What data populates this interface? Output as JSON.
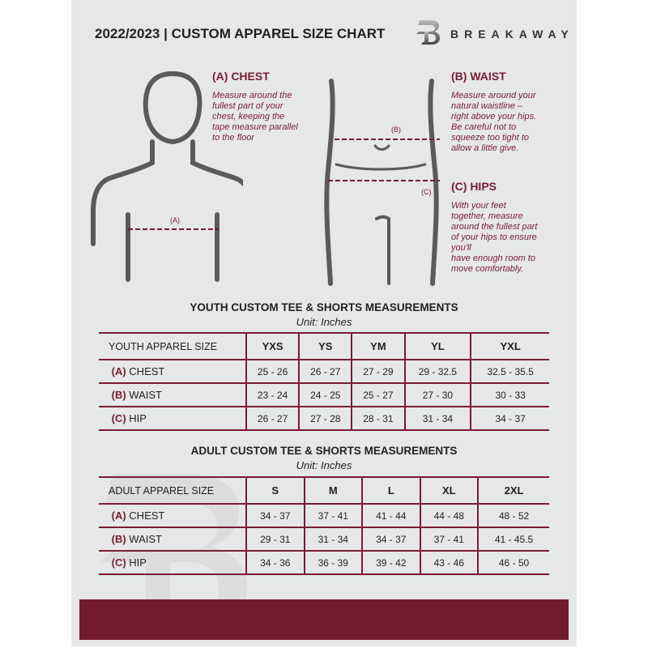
{
  "header": {
    "title": "2022/2023  |  CUSTOM APPAREL SIZE CHART",
    "brand": "BREAKAWAY",
    "logo_letter": "B"
  },
  "chest": {
    "heading": "(A) CHEST",
    "text": [
      "Measure around the",
      "fullest part of your",
      "chest, keeping the",
      "tape measure parallel",
      "to the floor"
    ],
    "marker": "(A)"
  },
  "waist": {
    "heading": "(B) WAIST",
    "text": [
      "Measure around your",
      "natural waistline –",
      "right above your hips.",
      "Be careful not to",
      "squeeze too tight to",
      "allow a little give."
    ],
    "marker": "(B)"
  },
  "hips": {
    "heading": "(C) HIPS",
    "text": [
      "With your feet",
      "together, measure",
      "around the fullest part",
      "of your hips to ensure",
      "you'll",
      "have enough room to",
      "move comfortably."
    ],
    "marker": "(C)"
  },
  "youth": {
    "title": "YOUTH CUSTOM TEE & SHORTS MEASUREMENTS",
    "unit": "Unit: Inches",
    "header": [
      "YOUTH APPAREL SIZE",
      "YXS",
      "YS",
      "YM",
      "YL",
      "YXL"
    ],
    "rows": [
      {
        "code": "(A)",
        "label": "CHEST",
        "values": [
          "25 - 26",
          "26 - 27",
          "27 - 29",
          "29 - 32.5",
          "32.5 - 35.5"
        ]
      },
      {
        "code": "(B)",
        "label": "WAIST",
        "values": [
          "23 - 24",
          "24 - 25",
          "25 - 27",
          "27 - 30",
          "30 - 33"
        ]
      },
      {
        "code": "(C)",
        "label": "HIP",
        "values": [
          "26 - 27",
          "27 - 28",
          "28 - 31",
          "31 - 34",
          "34 - 37"
        ]
      }
    ]
  },
  "adult": {
    "title": "ADULT CUSTOM TEE & SHORTS MEASUREMENTS",
    "unit": "Unit: Inches",
    "header": [
      "ADULT APPAREL SIZE",
      "S",
      "M",
      "L",
      "XL",
      "2XL"
    ],
    "rows": [
      {
        "code": "(A)",
        "label": "CHEST",
        "values": [
          "34 - 37",
          "37 - 41",
          "41 - 44",
          "44 - 48",
          "48 - 52"
        ]
      },
      {
        "code": "(B)",
        "label": "WAIST",
        "values": [
          "29 - 31",
          "31 - 34",
          "34 - 37",
          "37 - 41",
          "41 - 45.5"
        ]
      },
      {
        "code": "(C)",
        "label": "HIP",
        "values": [
          "34 - 36",
          "36 - 39",
          "39 - 42",
          "43 - 46",
          "46 - 50"
        ]
      }
    ]
  },
  "colors": {
    "accent": "#7a1c33",
    "footer": "#731c31",
    "background": "#e6e7e8"
  }
}
